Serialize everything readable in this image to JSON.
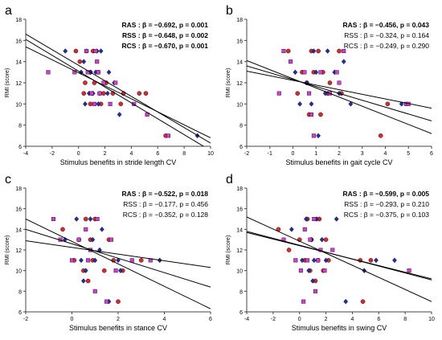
{
  "colors": {
    "circle": "#d9282f",
    "diamond": "#1f2fa8",
    "square": "#d63ad8",
    "line": "#000000",
    "axis": "#444444"
  },
  "chart_data": [
    {
      "type": "scatter",
      "panel_label": "a",
      "xlabel": "Stimulus benefits in stride length CV",
      "ylabel": "RMI (score)",
      "xlim": [
        -4,
        10
      ],
      "ylim": [
        6,
        18
      ],
      "xticks": [
        "-4",
        "-2",
        "0",
        "2",
        "4",
        "6",
        "8",
        "10"
      ],
      "yticks": [
        "6",
        "8",
        "10",
        "12",
        "14",
        "16",
        "18"
      ],
      "stats": [
        "RAS : β = −0.692, p = 0.001",
        "RSS : β = −0.648, p = 0.002",
        "RCS : β = −0.670, p = 0.001"
      ],
      "stats_bold": [
        true,
        true,
        true
      ],
      "fit_lines": [
        {
          "name": "RAS",
          "x": [
            -4,
            10
          ],
          "y": [
            16.6,
            6.3
          ]
        },
        {
          "name": "RSS",
          "x": [
            -4,
            10
          ],
          "y": [
            15.4,
            6.8
          ]
        },
        {
          "name": "RCS",
          "x": [
            -4,
            10
          ],
          "y": [
            16.1,
            5.6
          ]
        }
      ],
      "series": [
        {
          "name": "RAS",
          "marker": "circle",
          "x": [
            -0.2,
            0.1,
            0.6,
            1.1,
            0.9,
            1.5,
            0.5,
            1.2,
            2.1,
            3.4,
            1.9,
            0.4,
            1.0,
            1.6,
            2.6,
            4.6,
            5.1,
            0.9,
            1.7,
            3.2,
            6.6
          ],
          "y": [
            15,
            14,
            15,
            15,
            13,
            13,
            12,
            12,
            12,
            11,
            11,
            11,
            11,
            11,
            11,
            11,
            11,
            10,
            10,
            10,
            7
          ]
        },
        {
          "name": "RSS",
          "marker": "diamond",
          "x": [
            -1.0,
            0.4,
            1.4,
            1.7,
            0.2,
            0.9,
            1.3,
            2.3,
            2.7,
            0.8,
            1.1,
            2.2,
            0.5,
            1.5,
            3.1,
            9.0
          ],
          "y": [
            15,
            14,
            15,
            15,
            13,
            13,
            13,
            13,
            12,
            11,
            11,
            11,
            10,
            10,
            9,
            7
          ]
        },
        {
          "name": "RCS",
          "marker": "square",
          "x": [
            -2.3,
            0.6,
            1.3,
            1.4,
            -0.3,
            0.7,
            1.5,
            1.9,
            2.8,
            1.0,
            1.6,
            1.2,
            2.4,
            4.2,
            5.2,
            6.8
          ],
          "y": [
            13,
            15,
            15,
            14,
            13,
            13,
            13,
            12,
            12,
            11,
            11,
            10,
            10,
            10,
            9,
            7
          ]
        }
      ]
    },
    {
      "type": "scatter",
      "panel_label": "b",
      "xlabel": "Stimulus benefits in gait cycle CV",
      "ylabel": "RMI (score)",
      "xlim": [
        -2,
        6
      ],
      "ylim": [
        6,
        18
      ],
      "xticks": [
        "-2",
        "-1",
        "0",
        "1",
        "2",
        "3",
        "4",
        "5",
        "6"
      ],
      "yticks": [
        "6",
        "8",
        "10",
        "12",
        "14",
        "16",
        "18"
      ],
      "stats": [
        "RAS : β = −0.456, p = 0.043",
        "RSS : β = −0.324, p = 0.164",
        "RCS : β = −0.249, p = 0.290"
      ],
      "stats_bold": [
        true,
        false,
        false
      ],
      "fit_lines": [
        {
          "name": "RAS",
          "x": [
            -2,
            6
          ],
          "y": [
            14.1,
            7.2
          ]
        },
        {
          "name": "RSS",
          "x": [
            -2,
            6
          ],
          "y": [
            13.6,
            8.4
          ]
        },
        {
          "name": "RCS",
          "x": [
            -2,
            6
          ],
          "y": [
            13.1,
            9.6
          ]
        }
      ],
      "series": [
        {
          "name": "RAS",
          "marker": "circle",
          "x": [
            -0.2,
            0.8,
            1.1,
            2.0,
            0.4,
            0.9,
            1.3,
            0.6,
            1.6,
            0.2,
            1.5,
            2.1,
            4.1,
            0.7,
            1.2,
            3.8
          ],
          "y": [
            15,
            15,
            15,
            15,
            13,
            13,
            13,
            12,
            12,
            11,
            11,
            11,
            10,
            9,
            9,
            7
          ]
        },
        {
          "name": "RSS",
          "marker": "diamond",
          "x": [
            0.9,
            1.5,
            2.2,
            0.1,
            1.0,
            1.8,
            0.6,
            1.4,
            2.0,
            0.3,
            0.8,
            2.5,
            4.7,
            1.1
          ],
          "y": [
            15,
            15,
            14,
            13,
            13,
            13,
            12,
            11,
            11,
            10,
            10,
            10,
            10,
            7
          ]
        },
        {
          "name": "RCS",
          "marker": "square",
          "x": [
            -0.4,
            2.2,
            -0.1,
            0.5,
            1.2,
            1.9,
            -0.6,
            0.7,
            1.6,
            2.0,
            4.9,
            5.0,
            0.8,
            0.9
          ],
          "y": [
            15,
            15,
            14,
            13,
            13,
            13,
            11,
            11,
            11,
            12,
            10,
            10,
            9,
            7
          ]
        }
      ]
    },
    {
      "type": "scatter",
      "panel_label": "c",
      "xlabel": "Stimulus benefits in stance CV",
      "ylabel": "RMI (score)",
      "xlim": [
        -2,
        6
      ],
      "ylim": [
        6,
        18
      ],
      "xticks": [
        "-2",
        "0",
        "2",
        "4",
        "6"
      ],
      "yticks": [
        "6",
        "8",
        "10",
        "12",
        "14",
        "16",
        "18"
      ],
      "stats": [
        "RAS : β = −0.522, p = 0.018",
        "RSS : β = −0.177, p = 0.456",
        "RCS : β = −0.352, p = 0.128"
      ],
      "stats_bold": [
        true,
        false,
        false
      ],
      "fit_lines": [
        {
          "name": "RAS",
          "x": [
            -2,
            6
          ],
          "y": [
            15.0,
            6.3
          ]
        },
        {
          "name": "RSS",
          "x": [
            -2,
            6
          ],
          "y": [
            12.9,
            10.3
          ]
        },
        {
          "name": "RCS",
          "x": [
            -2,
            6
          ],
          "y": [
            14.0,
            8.4
          ]
        }
      ],
      "series": [
        {
          "name": "RAS",
          "marker": "circle",
          "x": [
            -0.4,
            0.6,
            1.0,
            0.3,
            0.8,
            1.6,
            0.1,
            0.9,
            1.8,
            3.0,
            0.5,
            1.4,
            2.2,
            0.7,
            2.0
          ],
          "y": [
            14,
            15,
            15,
            13,
            13,
            13,
            11,
            11,
            11,
            11,
            10,
            10,
            10,
            9,
            7
          ]
        },
        {
          "name": "RSS",
          "marker": "diamond",
          "x": [
            0.2,
            0.8,
            1.3,
            -0.3,
            0.9,
            1.2,
            0.4,
            1.0,
            2.0,
            3.8,
            0.6,
            2.1,
            0.5,
            1.6
          ],
          "y": [
            15,
            15,
            14,
            13,
            13,
            12,
            11,
            11,
            11,
            11,
            10,
            10,
            9,
            7
          ]
        },
        {
          "name": "RCS",
          "marker": "square",
          "x": [
            -0.8,
            1.1,
            0.3,
            0.6,
            -0.5,
            0.8,
            1.7,
            2.6,
            0.0,
            0.7,
            1.9,
            3.4,
            1.0,
            1.5
          ],
          "y": [
            15,
            15,
            13,
            14,
            13,
            12,
            13,
            11,
            11,
            11,
            10,
            11,
            8,
            7
          ]
        }
      ]
    },
    {
      "type": "scatter",
      "panel_label": "d",
      "xlabel": "Stimulus benefits in swing CV",
      "ylabel": "RMI (score)",
      "xlim": [
        -4,
        10
      ],
      "ylim": [
        6,
        18
      ],
      "xticks": [
        "-4",
        "-2",
        "0",
        "2",
        "4",
        "6",
        "8",
        "10"
      ],
      "yticks": [
        "6",
        "8",
        "10",
        "12",
        "14",
        "16",
        "18"
      ],
      "stats": [
        "RAS : β = −0.599, p = 0.005",
        "RSS : β = −0.293, p = 0.210",
        "RCS : β = −0.375, p = 0.103"
      ],
      "stats_bold": [
        true,
        false,
        false
      ],
      "fit_lines": [
        {
          "name": "RAS",
          "x": [
            -4,
            10
          ],
          "y": [
            15.2,
            7.0
          ]
        },
        {
          "name": "RSS",
          "x": [
            -4,
            10
          ],
          "y": [
            13.8,
            9.1
          ]
        },
        {
          "name": "RCS",
          "x": [
            -4,
            10
          ],
          "y": [
            13.7,
            9.2
          ]
        }
      ],
      "series": [
        {
          "name": "RAS",
          "marker": "circle",
          "x": [
            -1.6,
            0.6,
            1.5,
            0.0,
            0.9,
            2.0,
            -0.8,
            0.4,
            1.4,
            2.2,
            4.6,
            0.8,
            1.8,
            5.4,
            1.2,
            4.8
          ],
          "y": [
            14,
            15,
            15,
            13,
            13,
            13,
            12,
            11,
            11,
            11,
            11,
            10,
            10,
            11,
            9,
            7
          ]
        },
        {
          "name": "RSS",
          "marker": "diamond",
          "x": [
            0.5,
            1.3,
            2.8,
            -0.6,
            0.9,
            1.7,
            0.2,
            1.1,
            2.0,
            5.8,
            0.7,
            4.9,
            7.2,
            1.0,
            3.5
          ],
          "y": [
            15,
            15,
            15,
            14,
            13,
            13,
            11,
            11,
            11,
            11,
            10,
            10,
            11,
            9,
            7
          ]
        },
        {
          "name": "RCS",
          "marker": "square",
          "x": [
            -1.2,
            1.1,
            0.4,
            0.8,
            1.6,
            -0.3,
            0.6,
            1.4,
            2.5,
            0.1,
            1.9,
            8.3,
            1.2,
            0.3
          ],
          "y": [
            13,
            15,
            14,
            13,
            12,
            11,
            11,
            11,
            12,
            10,
            10,
            10,
            8,
            7
          ]
        }
      ]
    }
  ]
}
